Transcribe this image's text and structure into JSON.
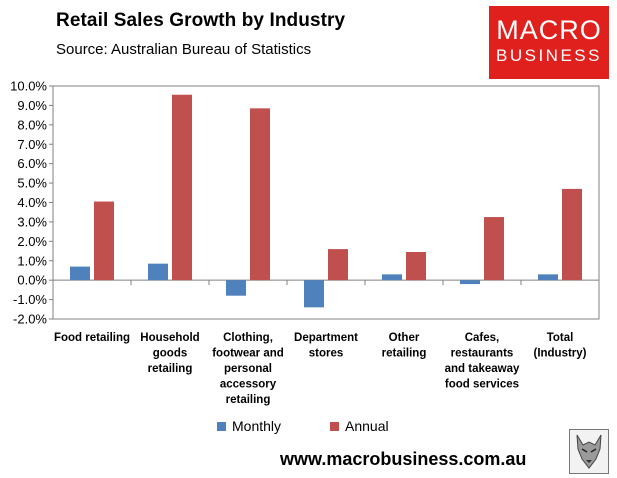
{
  "header": {
    "title": "Retail Sales Growth by Industry",
    "subtitle": "Source: Australian Bureau of Statistics"
  },
  "logo": {
    "line1": "MACRO",
    "line2": "BUSINESS",
    "color": "#e0201d"
  },
  "footer": {
    "url": "www.macrobusiness.com.au"
  },
  "chart_data": {
    "type": "bar",
    "title": "Retail Sales Growth by Industry",
    "xlabel": "",
    "ylabel": "",
    "ylim": [
      -2.0,
      10.0
    ],
    "ytick_step": 1.0,
    "yticks": [
      "10.0%",
      "9.0%",
      "8.0%",
      "7.0%",
      "6.0%",
      "5.0%",
      "4.0%",
      "3.0%",
      "2.0%",
      "1.0%",
      "0.0%",
      "-1.0%",
      "-2.0%"
    ],
    "categories": [
      [
        "Food retailing"
      ],
      [
        "Household",
        "goods",
        "retailing"
      ],
      [
        "Clothing,",
        "footwear and",
        "personal",
        "accessory",
        "retailing"
      ],
      [
        "Department",
        "stores"
      ],
      [
        "Other",
        "retailing"
      ],
      [
        "Cafes,",
        "restaurants",
        "and takeaway",
        "food services"
      ],
      [
        "Total",
        "(Industry)"
      ]
    ],
    "series": [
      {
        "name": "Monthly",
        "color": "#4f81bd",
        "values": [
          0.7,
          0.85,
          -0.8,
          -1.4,
          0.3,
          -0.2,
          0.3
        ]
      },
      {
        "name": "Annual",
        "color": "#c0504d",
        "values": [
          4.05,
          9.55,
          8.85,
          1.6,
          1.45,
          3.25,
          4.7
        ]
      }
    ],
    "grid": false,
    "legend": "bottom"
  }
}
